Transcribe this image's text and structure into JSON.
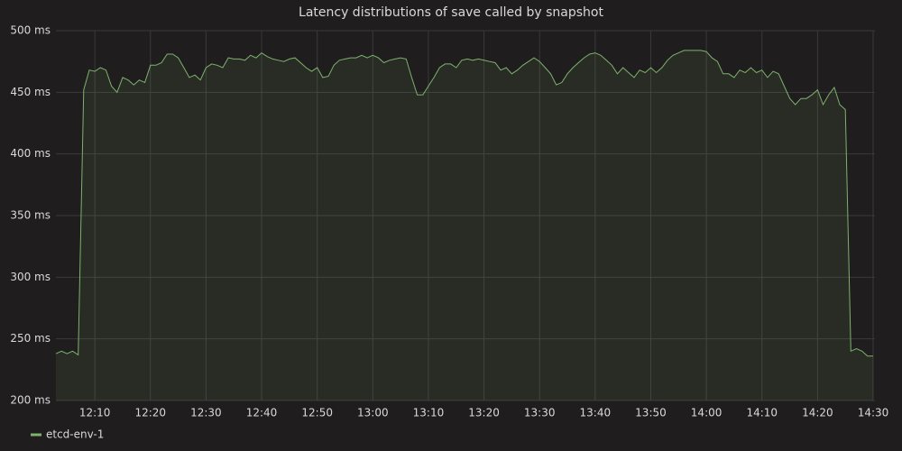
{
  "chart_data": {
    "type": "line",
    "title": "Latency distributions of save called by snapshot",
    "x": [
      "12:03",
      "12:04",
      "12:05",
      "12:06",
      "12:07",
      "12:08",
      "12:09",
      "12:10",
      "12:11",
      "12:12",
      "12:13",
      "12:14",
      "12:15",
      "12:16",
      "12:17",
      "12:18",
      "12:19",
      "12:20",
      "12:21",
      "12:22",
      "12:23",
      "12:24",
      "12:25",
      "12:26",
      "12:27",
      "12:28",
      "12:29",
      "12:30",
      "12:31",
      "12:32",
      "12:33",
      "12:34",
      "12:35",
      "12:36",
      "12:37",
      "12:38",
      "12:39",
      "12:40",
      "12:41",
      "12:42",
      "12:43",
      "12:44",
      "12:45",
      "12:46",
      "12:47",
      "12:48",
      "12:49",
      "12:50",
      "12:51",
      "12:52",
      "12:53",
      "12:54",
      "12:55",
      "12:56",
      "12:57",
      "12:58",
      "12:59",
      "13:00",
      "13:01",
      "13:02",
      "13:03",
      "13:04",
      "13:05",
      "13:06",
      "13:07",
      "13:08",
      "13:09",
      "13:10",
      "13:11",
      "13:12",
      "13:13",
      "13:14",
      "13:15",
      "13:16",
      "13:17",
      "13:18",
      "13:19",
      "13:20",
      "13:21",
      "13:22",
      "13:23",
      "13:24",
      "13:25",
      "13:26",
      "13:27",
      "13:28",
      "13:29",
      "13:30",
      "13:31",
      "13:32",
      "13:33",
      "13:34",
      "13:35",
      "13:36",
      "13:37",
      "13:38",
      "13:39",
      "13:40",
      "13:41",
      "13:42",
      "13:43",
      "13:44",
      "13:45",
      "13:46",
      "13:47",
      "13:48",
      "13:49",
      "13:50",
      "13:51",
      "13:52",
      "13:53",
      "13:54",
      "13:55",
      "13:56",
      "13:57",
      "13:58",
      "13:59",
      "14:00",
      "14:01",
      "14:02",
      "14:03",
      "14:04",
      "14:05",
      "14:06",
      "14:07",
      "14:08",
      "14:09",
      "14:10",
      "14:11",
      "14:12",
      "14:13",
      "14:14",
      "14:15",
      "14:16",
      "14:17",
      "14:18",
      "14:19",
      "14:20",
      "14:21",
      "14:22",
      "14:23",
      "14:24",
      "14:25",
      "14:26",
      "14:27",
      "14:28",
      "14:29",
      "14:30"
    ],
    "series": [
      {
        "name": "etcd-env-1",
        "color": "#7eb26d",
        "values": [
          238,
          240,
          238,
          240,
          237,
          452,
          468,
          467,
          470,
          468,
          455,
          450,
          462,
          460,
          456,
          460,
          458,
          472,
          472,
          474,
          481,
          481,
          478,
          470,
          462,
          464,
          460,
          470,
          473,
          472,
          470,
          478,
          477,
          477,
          476,
          480,
          478,
          482,
          479,
          477,
          476,
          475,
          477,
          478,
          474,
          470,
          467,
          470,
          462,
          463,
          472,
          476,
          477,
          478,
          478,
          480,
          478,
          480,
          478,
          474,
          476,
          477,
          478,
          477,
          462,
          448,
          448,
          455,
          462,
          470,
          473,
          473,
          470,
          476,
          477,
          476,
          477,
          476,
          475,
          474,
          468,
          470,
          465,
          468,
          472,
          475,
          478,
          475,
          470,
          465,
          456,
          458,
          465,
          470,
          474,
          478,
          481,
          482,
          480,
          476,
          472,
          465,
          470,
          466,
          462,
          468,
          466,
          470,
          466,
          470,
          476,
          480,
          482,
          484,
          484,
          484,
          484,
          483,
          478,
          475,
          465,
          465,
          462,
          468,
          466,
          470,
          466,
          468,
          462,
          467,
          465,
          455,
          445,
          440,
          445,
          445,
          448,
          452,
          440,
          448,
          454,
          440,
          436,
          240,
          242,
          240,
          236,
          236
        ]
      }
    ],
    "xlim": [
      "12:03",
      "14:30"
    ],
    "xticks": [
      "12:10",
      "12:20",
      "12:30",
      "12:40",
      "12:50",
      "13:00",
      "13:10",
      "13:20",
      "13:30",
      "13:40",
      "13:50",
      "14:00",
      "14:10",
      "14:20",
      "14:30"
    ],
    "ylim": [
      200,
      500
    ],
    "yticks": [
      {
        "value": 200,
        "label": "200 ms"
      },
      {
        "value": 250,
        "label": "250 ms"
      },
      {
        "value": 300,
        "label": "300 ms"
      },
      {
        "value": 350,
        "label": "350 ms"
      },
      {
        "value": 400,
        "label": "400 ms"
      },
      {
        "value": 450,
        "label": "450 ms"
      },
      {
        "value": 500,
        "label": "500 ms"
      }
    ],
    "grid": true
  }
}
